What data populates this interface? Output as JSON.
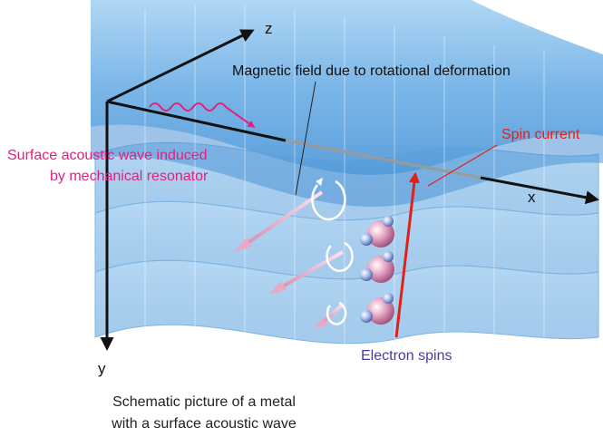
{
  "axes": {
    "x": "x",
    "y": "y",
    "z": "z"
  },
  "labels": {
    "magnetic_field": "Magnetic field due to rotational deformation",
    "spin_current": "Spin current",
    "saw_line1": "Surface acoustic wave induced",
    "saw_line2": "by mechanical resonator",
    "electron_spins": "Electron spins"
  },
  "caption": {
    "line1": "Schematic picture of a metal",
    "line2": "with a surface acoustic wave"
  },
  "colors": {
    "sheet": "#7fbbe8",
    "sheet_dark": "#3d86cc",
    "axis": "#111111",
    "saw": "#e0217f",
    "spin_current": "#e0201a",
    "electron_spins": "#4a3aa0",
    "field_arrow": "#f5c6dc"
  },
  "icons": [
    "rotation-arrow-icon",
    "electron-sphere-icon",
    "field-vector-icon"
  ]
}
